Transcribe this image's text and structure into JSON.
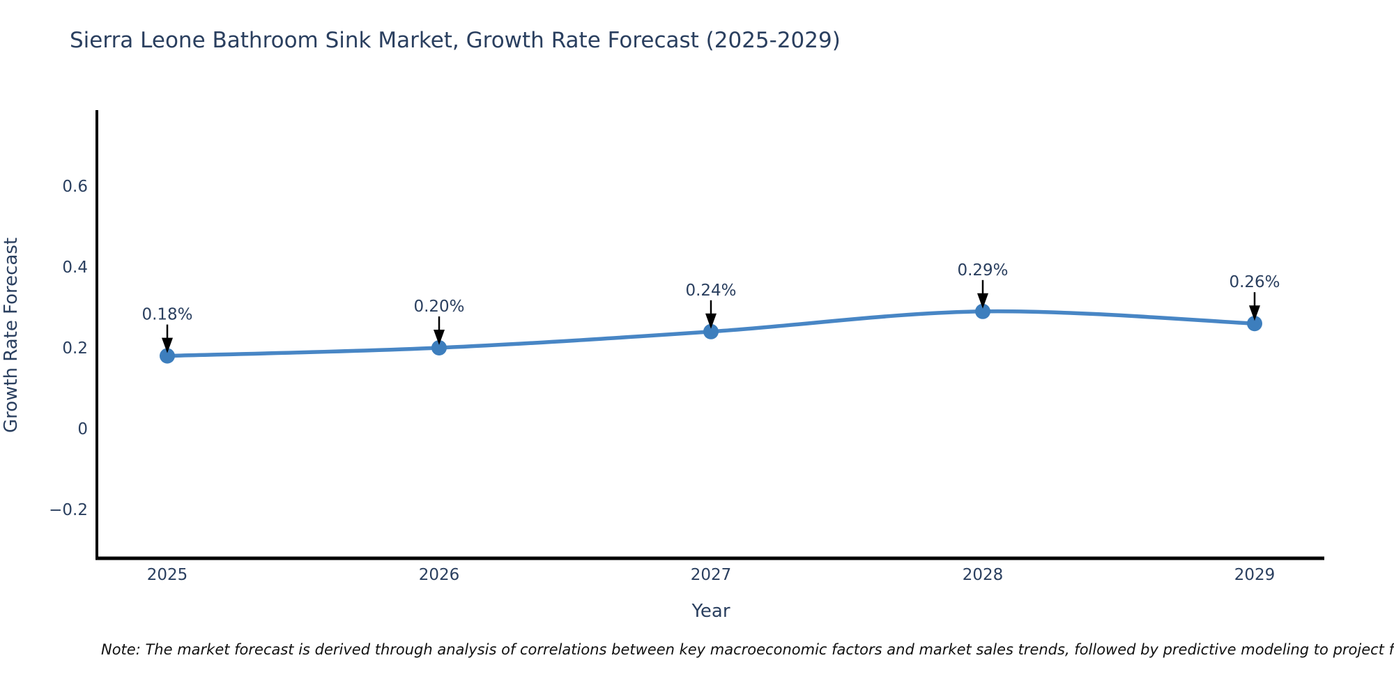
{
  "title": "Sierra Leone Bathroom Sink Market, Growth Rate Forecast (2025-2029)",
  "note": "Note: The market forecast is derived through analysis of correlations between key macroeconomic factors and market sales trends, followed by predictive modeling to project future sales.",
  "chart_data": {
    "type": "line",
    "title": "Sierra Leone Bathroom Sink Market, Growth Rate Forecast (2025-2029)",
    "xlabel": "Year",
    "ylabel": "Growth Rate Forecast",
    "x": [
      2025,
      2026,
      2027,
      2028,
      2029
    ],
    "y": [
      0.18,
      0.2,
      0.24,
      0.29,
      0.26
    ],
    "point_labels": [
      "0.18%",
      "0.20%",
      "0.24%",
      "0.29%",
      "0.26%"
    ],
    "xtick_labels": [
      "2025",
      "2026",
      "2027",
      "2028",
      "2029"
    ],
    "yticks": [
      0.6,
      0.4,
      0.2,
      0,
      -0.2
    ],
    "ytick_labels": [
      "0.6",
      "0.4",
      "0.2",
      "0",
      "−0.2"
    ],
    "ylim": [
      -0.32,
      0.784
    ],
    "grid": false,
    "legend": false,
    "line_shape": "spline",
    "colors": {
      "line": "#4886c5",
      "marker": "#3d7ebd",
      "axis": "#000000",
      "text": "#2a3f5f",
      "annotation_arrow": "#000000",
      "background": "#ffffff"
    }
  }
}
